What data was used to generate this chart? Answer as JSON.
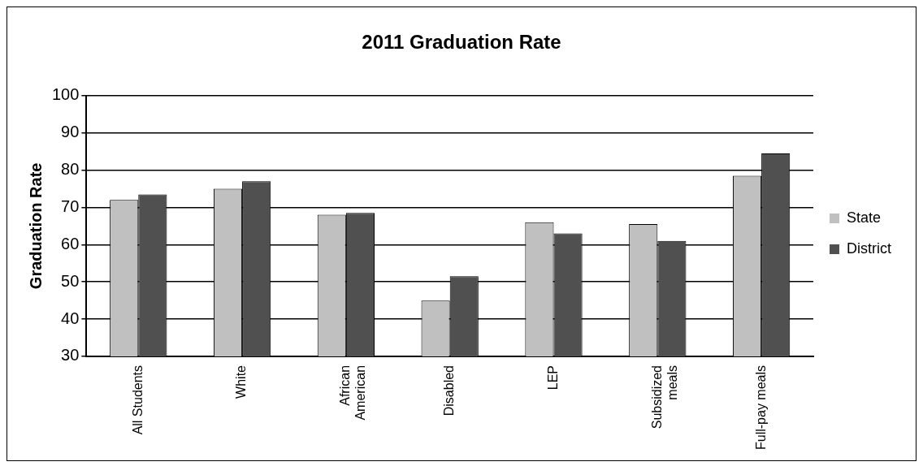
{
  "chart_data": {
    "type": "bar",
    "title": "2011 Graduation Rate",
    "ylabel": "Graduation Rate",
    "categories": [
      "All Students",
      "White",
      "African American",
      "Disabled",
      "LEP",
      "Subsidized meals",
      "Full-pay meals"
    ],
    "series": [
      {
        "name": "State",
        "color": "#c0c0c0",
        "values": [
          72,
          75,
          68,
          45,
          66,
          65.5,
          78.5
        ]
      },
      {
        "name": "District",
        "color": "#505050",
        "values": [
          73.5,
          77,
          68.5,
          51.5,
          63,
          61,
          84.5
        ]
      }
    ],
    "ylim": [
      30,
      100
    ],
    "yticks": [
      30,
      40,
      50,
      60,
      70,
      80,
      90,
      100
    ],
    "grid": "y",
    "legend": "right"
  }
}
